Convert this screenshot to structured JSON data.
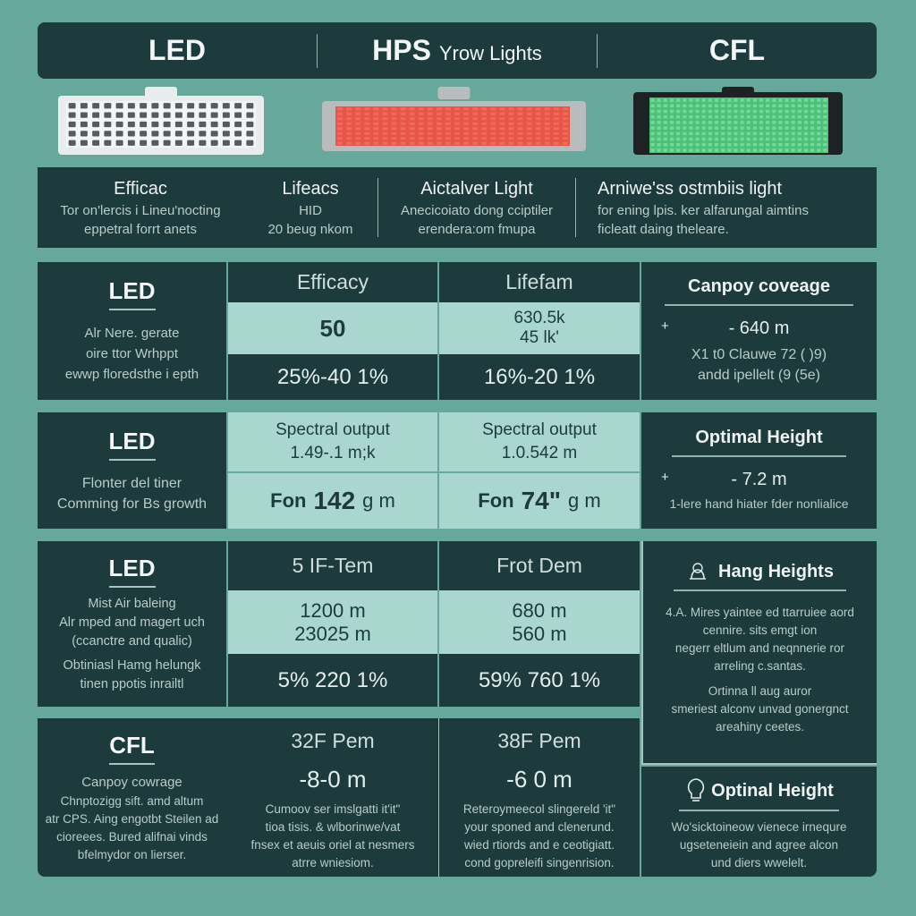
{
  "header": {
    "col1": "LED",
    "col2_main": "HPS",
    "col2_sub": "Yrow Lights",
    "col3": "CFL"
  },
  "lamps": [
    {
      "name": "LED",
      "color": "#f0f2f2"
    },
    {
      "name": "HPS",
      "color": "#f06a5a"
    },
    {
      "name": "CFL",
      "color": "#6fdb95"
    }
  ],
  "band": [
    {
      "title": "Efficac",
      "lines": [
        "Tor on'lercis i Lineu'nocting",
        "eppetral forrt anets"
      ]
    },
    {
      "title": "Lifeacs",
      "lines": [
        "HID",
        "20 beug nkom"
      ]
    },
    {
      "title": "Aictalver Light",
      "lines": [
        "Anecicoiato dong cciptiler",
        "erendera:om fmupa"
      ]
    },
    {
      "title": "Arniwe'ss ostmbiis light",
      "lines": [
        "for ening lpis. ker alfarungal aimtins",
        "ficleatt daing theleare."
      ]
    }
  ],
  "row1": {
    "label": "LED",
    "desc": [
      "Alr Nere. gerate",
      "oire ttor Wrhppt",
      "ewwp floredsthe i epth"
    ],
    "col2": {
      "head": "Efficacy",
      "mid": "50",
      "bottom": "25%-40 1%"
    },
    "col3": {
      "head": "Lifefam",
      "mid1": "630.5k",
      "mid2": "45 lk'",
      "bottom": "16%-20 1%"
    },
    "side": {
      "title": "Canpoy coveage",
      "plus": "+",
      "value": "- 640 m",
      "l1": "X1 t0 Clauwe 72 ( )9)",
      "l2": "andd ipellelt (9 (5e)"
    }
  },
  "row2": {
    "label": "LED",
    "desc": [
      "Flonter del tiner",
      "Comming for Bs growth"
    ],
    "col2": {
      "head": "Spectral output",
      "val": "1.49-.1 m;k",
      "bottom_pre": "Fon",
      "bottom_num": "142",
      "bottom_unit": "g m"
    },
    "col3": {
      "head": "Spectral output",
      "val": "1.0.542 m",
      "bottom_pre": "Fon",
      "bottom_num": "74\"",
      "bottom_unit": "g m"
    },
    "side": {
      "title": "Optimal Height",
      "plus": "+",
      "value": "- 7.2 m",
      "l1": "1-lere hand hiater fder nonlialice"
    }
  },
  "row3": {
    "label": "LED",
    "desc": [
      "Mist Air baleing",
      "Alr mped and magert uch",
      "(ccanctre and qualic)"
    ],
    "desc2": [
      "Obtiniasl Hamg helungk",
      "tinen ppotis inrailtl"
    ],
    "col2": {
      "head": "5 IF-Tem",
      "mid1": "1200 m",
      "mid2": "23025 m",
      "bottom": "5% 220 1%"
    },
    "col3": {
      "head": "Frot Dem",
      "mid1": "680 m",
      "mid2": "560 m",
      "bottom": "59% 760 1%"
    }
  },
  "hang": {
    "title": "Hang Heights",
    "lines": [
      "4.A. Mires yaintee ed ttarruiee aord",
      "cennire. sits emgt ion",
      "negerr eltlum and neqnnerie ror",
      "arreling c.santas."
    ],
    "lines2": [
      "Ortinna ll aug auror",
      "smeriest alconv unvad gonergnct",
      "areahiny ceetes."
    ]
  },
  "row4": {
    "label": "CFL",
    "desc_title": "Canpoy cowrage",
    "desc": [
      "Chnptozigg sift. amd altum",
      "atr CPS. Aing engotbt Steilen ad",
      "cioreees. Bured alifnai vinds",
      "bfelmydor on lierser."
    ],
    "col2": {
      "head": "32F Pem",
      "value": "-8-0 m",
      "lines": [
        "Cumoov ser imslgatti it'it\"",
        "tioa tisis. & wlborinwe/vat",
        "fnsex et aeuis oriel at nesmers",
        "atrre wniesiom."
      ]
    },
    "col3": {
      "head": "38F Pem",
      "value": "-6 0 m",
      "lines": [
        "Reteroymeecol slingereld 'it\"",
        "your sponed and clenerund.",
        "wied rtiords and e ceotigiatt.",
        "cond gopreleifi singenrision."
      ]
    }
  },
  "opt": {
    "title": "Optinal Height",
    "lines": [
      "Wo'sicktoineow vienece irnequre",
      "ugseteneiein and agree alcon",
      "und diers wwelelt."
    ]
  }
}
